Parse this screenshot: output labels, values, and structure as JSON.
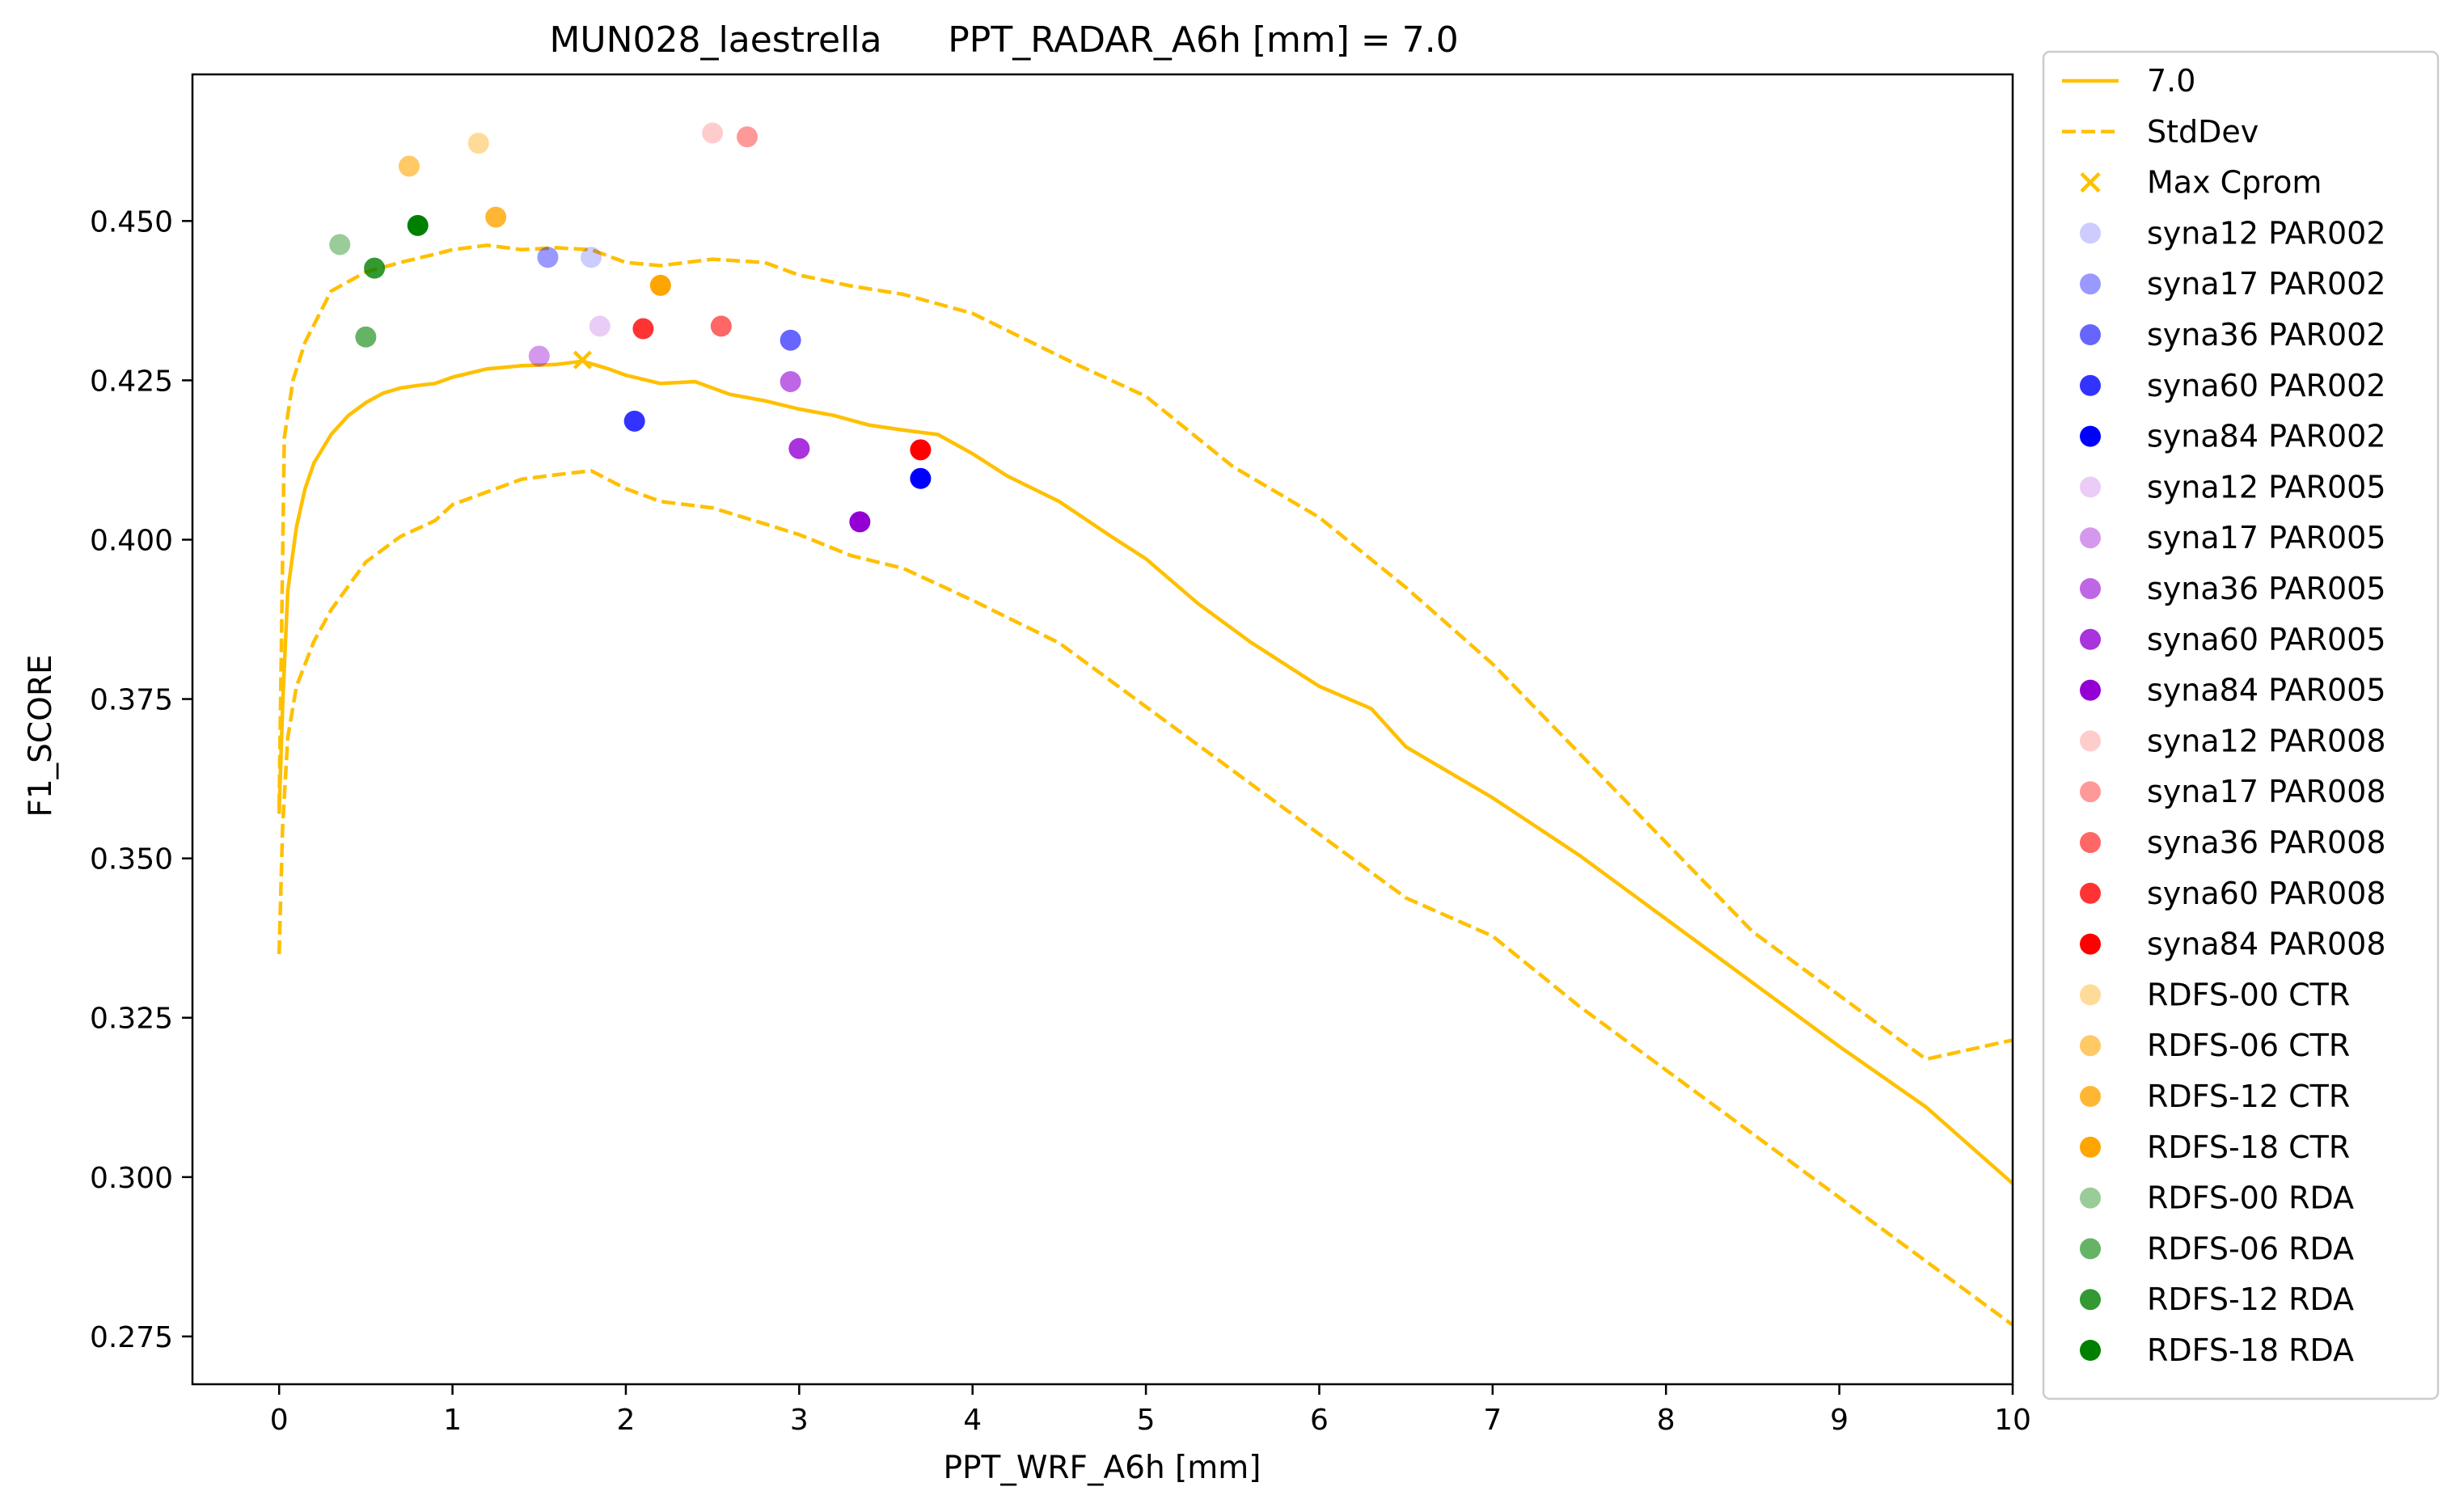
{
  "chart_data": {
    "type": "line",
    "title_left": "MUN028_laestrella",
    "title_right": "PPT_RADAR_A6h [mm] = 7.0",
    "xlabel": "PPT_WRF_A6h [mm]",
    "ylabel": "F1_SCORE",
    "xlim": [
      -0.5,
      10
    ],
    "ylim": [
      0.2675,
      0.473
    ],
    "xticks": [
      0,
      1,
      2,
      3,
      4,
      5,
      6,
      7,
      8,
      9,
      10
    ],
    "yticks": [
      0.275,
      0.3,
      0.325,
      0.35,
      0.375,
      0.4,
      0.425,
      0.45
    ],
    "ytick_labels": [
      "0.275",
      "0.300",
      "0.325",
      "0.350",
      "0.375",
      "0.400",
      "0.425",
      "0.450"
    ],
    "grid": false,
    "legend_position": "outside-right",
    "line_color": "#ffc000",
    "mean_series": {
      "name": "7.0",
      "x": [
        0,
        0.02,
        0.05,
        0.1,
        0.15,
        0.2,
        0.3,
        0.4,
        0.5,
        0.6,
        0.7,
        0.8,
        0.9,
        1.0,
        1.2,
        1.4,
        1.6,
        1.75,
        1.9,
        2.0,
        2.2,
        2.4,
        2.6,
        2.8,
        3.0,
        3.2,
        3.4,
        3.6,
        3.8,
        4.0,
        4.2,
        4.5,
        4.8,
        5.0,
        5.3,
        5.6,
        6.0,
        6.3,
        6.5,
        7.0,
        7.5,
        8.0,
        8.5,
        9.0,
        9.5,
        10.0
      ],
      "y": [
        0.357,
        0.374,
        0.392,
        0.402,
        0.408,
        0.412,
        0.4165,
        0.4195,
        0.4215,
        0.423,
        0.4238,
        0.4242,
        0.4245,
        0.4255,
        0.4268,
        0.4273,
        0.4275,
        0.428,
        0.4268,
        0.4258,
        0.4245,
        0.4248,
        0.4228,
        0.4218,
        0.4205,
        0.4195,
        0.418,
        0.4172,
        0.4165,
        0.4135,
        0.41,
        0.406,
        0.4005,
        0.397,
        0.39,
        0.384,
        0.377,
        0.3735,
        0.3675,
        0.3595,
        0.3505,
        0.3405,
        0.3305,
        0.3205,
        0.311,
        0.299
      ]
    },
    "stddev_series": {
      "name": "StdDev",
      "upper_x": [
        0,
        0.03,
        0.08,
        0.15,
        0.3,
        0.5,
        0.7,
        0.9,
        1.0,
        1.2,
        1.4,
        1.6,
        1.8,
        2.0,
        2.2,
        2.5,
        2.8,
        3.0,
        3.3,
        3.6,
        4.0,
        4.3,
        4.6,
        5.0,
        5.5,
        6.0,
        6.5,
        7.0,
        7.5,
        8.0,
        8.5,
        9.0,
        9.5,
        10.0
      ],
      "upper_y": [
        0.358,
        0.416,
        0.425,
        0.431,
        0.439,
        0.442,
        0.4435,
        0.4448,
        0.4455,
        0.4462,
        0.4455,
        0.4458,
        0.4455,
        0.4435,
        0.443,
        0.444,
        0.4435,
        0.4415,
        0.4398,
        0.4385,
        0.4355,
        0.4315,
        0.4275,
        0.4225,
        0.4115,
        0.4035,
        0.3925,
        0.3805,
        0.3665,
        0.3525,
        0.3385,
        0.3285,
        0.3185,
        0.3215
      ],
      "lower_x": [
        0,
        0.02,
        0.05,
        0.1,
        0.2,
        0.3,
        0.5,
        0.7,
        0.9,
        1.0,
        1.2,
        1.4,
        1.6,
        1.8,
        2.0,
        2.2,
        2.5,
        2.8,
        3.0,
        3.3,
        3.6,
        4.0,
        4.5,
        5.0,
        5.5,
        6.0,
        6.5,
        7.0,
        7.5,
        8.0,
        8.5,
        9.0,
        9.5,
        10.0
      ],
      "lower_y": [
        0.335,
        0.355,
        0.369,
        0.377,
        0.384,
        0.389,
        0.3965,
        0.4005,
        0.403,
        0.4055,
        0.4075,
        0.4095,
        0.4102,
        0.4108,
        0.408,
        0.406,
        0.405,
        0.4025,
        0.4008,
        0.3975,
        0.3955,
        0.3905,
        0.3838,
        0.3738,
        0.3638,
        0.3538,
        0.3438,
        0.3378,
        0.3268,
        0.3168,
        0.3068,
        0.2968,
        0.2868,
        0.2768
      ]
    },
    "max_cprom": {
      "name": "Max Cprom",
      "x": 1.75,
      "y": 0.4282,
      "color": "#ffc000"
    },
    "points": [
      {
        "name": "syna12 PAR002",
        "x": 1.8,
        "y": 0.4443,
        "color": "#0000ff",
        "alpha": 0.2
      },
      {
        "name": "syna17 PAR002",
        "x": 1.55,
        "y": 0.4443,
        "color": "#0000ff",
        "alpha": 0.4
      },
      {
        "name": "syna36 PAR002",
        "x": 2.95,
        "y": 0.4313,
        "color": "#0000ff",
        "alpha": 0.6
      },
      {
        "name": "syna60 PAR002",
        "x": 2.05,
        "y": 0.4186,
        "color": "#0000ff",
        "alpha": 0.8
      },
      {
        "name": "syna84 PAR002",
        "x": 3.7,
        "y": 0.4096,
        "color": "#0000ff",
        "alpha": 1.0
      },
      {
        "name": "syna12 PAR005",
        "x": 1.85,
        "y": 0.4335,
        "color": "#9400d3",
        "alpha": 0.2
      },
      {
        "name": "syna17 PAR005",
        "x": 1.5,
        "y": 0.4288,
        "color": "#9400d3",
        "alpha": 0.4
      },
      {
        "name": "syna36 PAR005",
        "x": 2.95,
        "y": 0.4248,
        "color": "#9400d3",
        "alpha": 0.6
      },
      {
        "name": "syna60 PAR005",
        "x": 3.0,
        "y": 0.4143,
        "color": "#9400d3",
        "alpha": 0.8
      },
      {
        "name": "syna84 PAR005",
        "x": 3.35,
        "y": 0.4028,
        "color": "#9400d3",
        "alpha": 1.0
      },
      {
        "name": "syna12 PAR008",
        "x": 2.5,
        "y": 0.4638,
        "color": "#ff0000",
        "alpha": 0.2
      },
      {
        "name": "syna17 PAR008",
        "x": 2.7,
        "y": 0.4632,
        "color": "#ff0000",
        "alpha": 0.4
      },
      {
        "name": "syna36 PAR008",
        "x": 2.55,
        "y": 0.4335,
        "color": "#ff0000",
        "alpha": 0.6
      },
      {
        "name": "syna60 PAR008",
        "x": 2.1,
        "y": 0.4331,
        "color": "#ff0000",
        "alpha": 0.8
      },
      {
        "name": "syna84 PAR008",
        "x": 3.7,
        "y": 0.4141,
        "color": "#ff0000",
        "alpha": 1.0
      },
      {
        "name": "RDFS-00 CTR",
        "x": 1.15,
        "y": 0.4622,
        "color": "#ffa500",
        "alpha": 0.4
      },
      {
        "name": "RDFS-06 CTR",
        "x": 0.75,
        "y": 0.4586,
        "color": "#ffa500",
        "alpha": 0.6
      },
      {
        "name": "RDFS-12 CTR",
        "x": 1.25,
        "y": 0.4506,
        "color": "#ffa500",
        "alpha": 0.8
      },
      {
        "name": "RDFS-18 CTR",
        "x": 2.2,
        "y": 0.4399,
        "color": "#ffa500",
        "alpha": 1.0
      },
      {
        "name": "RDFS-00 RDA",
        "x": 0.35,
        "y": 0.4463,
        "color": "#008000",
        "alpha": 0.4
      },
      {
        "name": "RDFS-06 RDA",
        "x": 0.5,
        "y": 0.4318,
        "color": "#008000",
        "alpha": 0.6
      },
      {
        "name": "RDFS-12 RDA",
        "x": 0.55,
        "y": 0.4426,
        "color": "#008000",
        "alpha": 0.8
      },
      {
        "name": "RDFS-18 RDA",
        "x": 0.8,
        "y": 0.4493,
        "color": "#008000",
        "alpha": 1.0
      }
    ]
  }
}
